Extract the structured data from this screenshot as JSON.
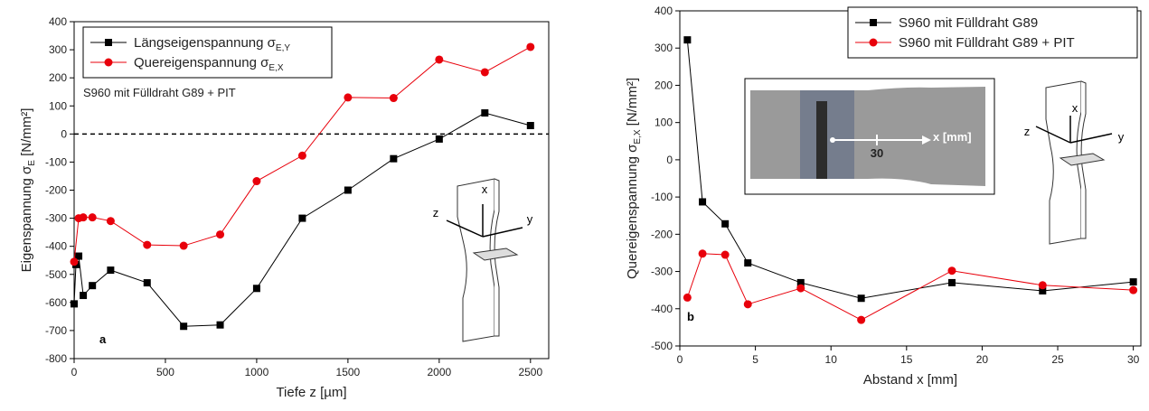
{
  "chart_data": [
    {
      "type": "line",
      "xlabel": "Tiefe z [µm]",
      "ylabel": {
        "text": "Eigenspannung σ",
        "sub": "E",
        "after": " [N/mm²]"
      },
      "xlim": [
        0,
        2600
      ],
      "ylim": [
        -800,
        400
      ],
      "xticks": [
        0,
        500,
        1000,
        1500,
        2000,
        2500
      ],
      "yticks": [
        -800,
        -700,
        -600,
        -500,
        -400,
        -300,
        -200,
        -100,
        0,
        100,
        200,
        300,
        400
      ],
      "hline": 0,
      "legend": "upper left",
      "series": [
        {
          "name": "Längseigenspannung σ",
          "sub": "E,Y",
          "color": "#000000",
          "marker": "square",
          "x": [
            0,
            10,
            25,
            50,
            100,
            200,
            400,
            600,
            800,
            1000,
            1250,
            1500,
            1750,
            2000,
            2250,
            2500
          ],
          "values": [
            -605,
            -465,
            -435,
            -575,
            -540,
            -485,
            -530,
            -685,
            -680,
            -550,
            -300,
            -200,
            -88,
            -18,
            75,
            30
          ]
        },
        {
          "name": "Quereigenspannung σ",
          "sub": "E,X",
          "color": "#e8000b",
          "marker": "circle",
          "x": [
            0,
            25,
            50,
            100,
            200,
            400,
            600,
            800,
            1000,
            1250,
            1500,
            1750,
            2000,
            2250,
            2500
          ],
          "values": [
            -455,
            -300,
            -297,
            -297,
            -310,
            -395,
            -398,
            -358,
            -168,
            -77,
            130,
            128,
            265,
            220,
            310
          ]
        }
      ],
      "annotations": [
        "S960 mit Fülldraht G89 + PIT",
        "a",
        "x",
        "y",
        "z"
      ]
    },
    {
      "type": "line",
      "xlabel": "Abstand x [mm]",
      "ylabel": {
        "text": "Quereigenspannung σ",
        "sub": "E,X",
        "after": " [N/mm²]"
      },
      "xlim": [
        0,
        30.5
      ],
      "ylim": [
        -500,
        400
      ],
      "xticks": [
        0,
        5,
        10,
        15,
        20,
        25,
        30
      ],
      "yticks": [
        -500,
        -400,
        -300,
        -200,
        -100,
        0,
        100,
        200,
        300,
        400
      ],
      "legend": "upper right",
      "series": [
        {
          "name": "S960 mit Fülldraht G89",
          "color": "#000000",
          "marker": "square",
          "x": [
            0.5,
            1.5,
            3,
            4.5,
            8,
            12,
            18,
            24,
            30
          ],
          "values": [
            322,
            -113,
            -172,
            -277,
            -330,
            -372,
            -330,
            -352,
            -328
          ]
        },
        {
          "name": "S960 mit Fülldraht G89 + PIT",
          "color": "#e8000b",
          "marker": "circle",
          "x": [
            0.5,
            1.5,
            3,
            4.5,
            8,
            12,
            18,
            24,
            30
          ],
          "values": [
            -370,
            -252,
            -255,
            -388,
            -345,
            -430,
            -298,
            -337,
            -350
          ]
        }
      ],
      "annotations": [
        "b",
        "x [mm]",
        "30",
        "x",
        "y",
        "z"
      ]
    }
  ]
}
